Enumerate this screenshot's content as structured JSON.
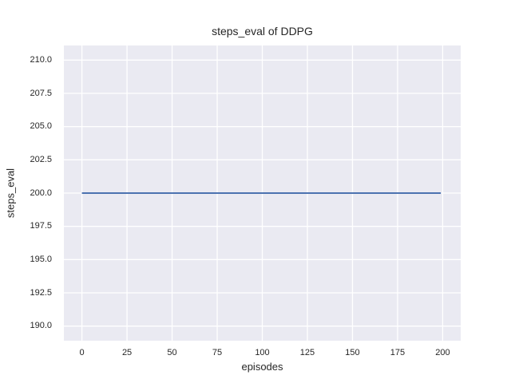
{
  "chart_data": {
    "type": "line",
    "title": "steps_eval of DDPG",
    "xlabel": "episodes",
    "ylabel": "steps_eval",
    "xlim": [
      -10,
      210
    ],
    "ylim": [
      188.9,
      211.1
    ],
    "grid": true,
    "legend": "none",
    "x_tick_values": [
      0,
      25,
      50,
      75,
      100,
      125,
      150,
      175,
      200
    ],
    "x_tick_labels": [
      "0",
      "25",
      "50",
      "75",
      "100",
      "125",
      "150",
      "175",
      "200"
    ],
    "y_tick_values": [
      190.0,
      192.5,
      195.0,
      197.5,
      200.0,
      202.5,
      205.0,
      207.5,
      210.0
    ],
    "y_tick_labels": [
      "190.0",
      "192.5",
      "195.0",
      "197.5",
      "200.0",
      "202.5",
      "205.0",
      "207.5",
      "210.0"
    ],
    "series": [
      {
        "name": "steps_eval",
        "color": "#4c72b0",
        "x": [
          0,
          199
        ],
        "y": [
          200,
          200
        ]
      }
    ],
    "colors": {
      "figure_background": "#ffffff",
      "plot_background": "#eaeaf2",
      "gridline": "#ffffff",
      "text": "#262626"
    }
  }
}
